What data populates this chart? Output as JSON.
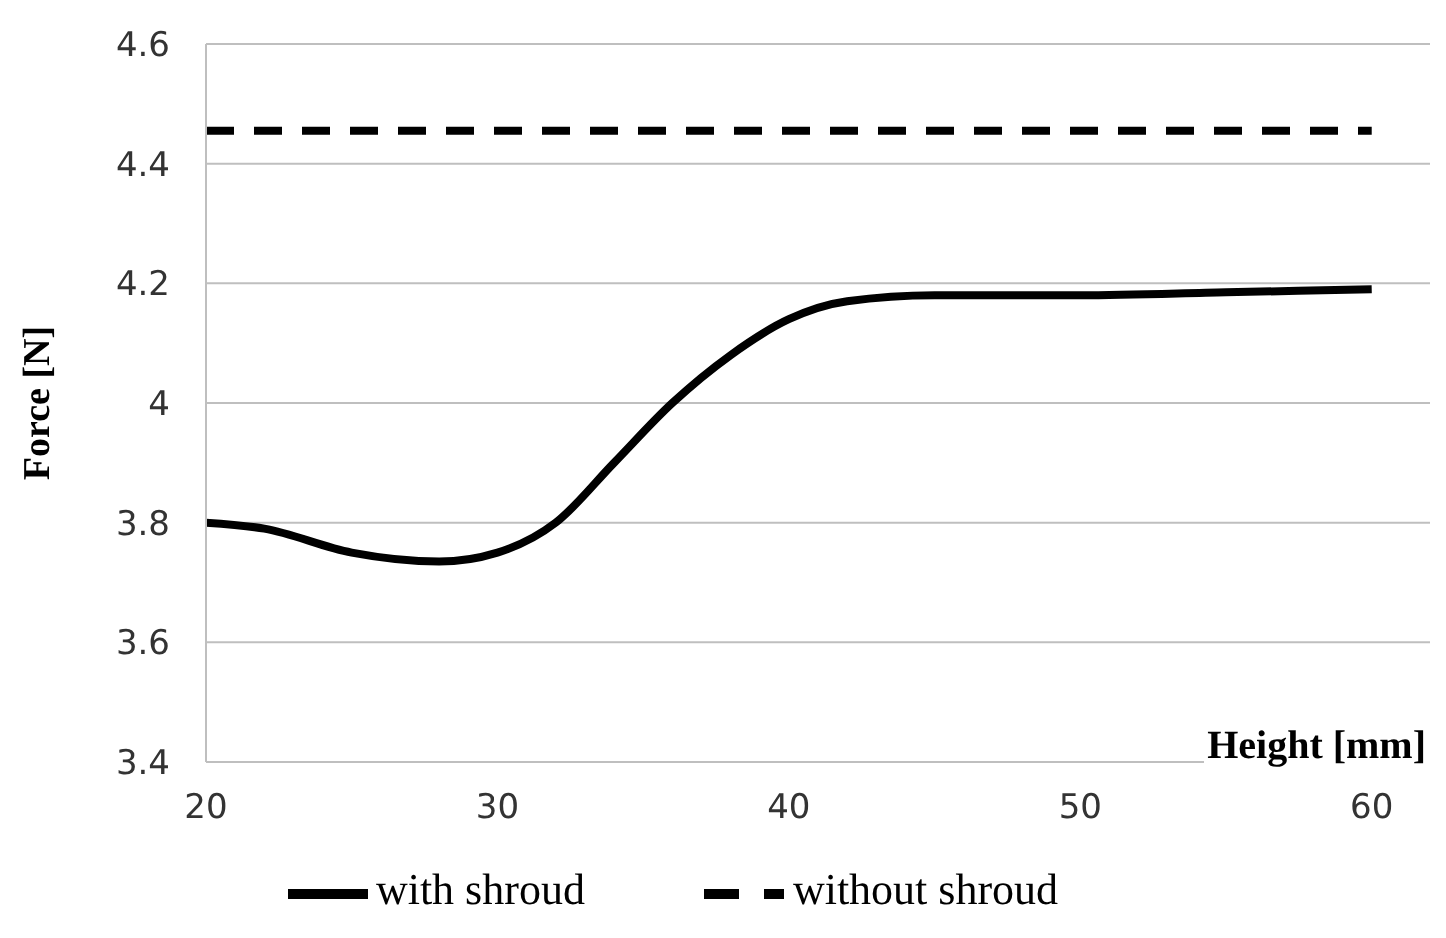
{
  "chart_data": {
    "type": "line",
    "xlabel": "Height [mm]",
    "ylabel": "Force [N]",
    "xlim": [
      20,
      62
    ],
    "xticks": [
      20,
      30,
      40,
      50,
      60
    ],
    "ylim": [
      3.4,
      4.6
    ],
    "yticks": [
      3.4,
      3.6,
      3.8,
      4,
      4.2,
      4.4,
      4.6
    ],
    "grid": "y",
    "legend": "bottom",
    "marker": "none",
    "series": [
      {
        "name": "with shroud",
        "color": "#000000",
        "line_style": "solid",
        "x": [
          20,
          22,
          25,
          28,
          30,
          32,
          34,
          36,
          38,
          40,
          42,
          45,
          50,
          55,
          60
        ],
        "values": [
          3.8,
          3.79,
          3.75,
          3.735,
          3.75,
          3.8,
          3.9,
          4.0,
          4.08,
          4.14,
          4.17,
          4.18,
          4.18,
          4.185,
          4.19
        ]
      },
      {
        "name": "without shroud",
        "color": "#000000",
        "line_style": "dashed",
        "x": [
          20,
          60
        ],
        "values": [
          4.455,
          4.455
        ]
      }
    ]
  }
}
